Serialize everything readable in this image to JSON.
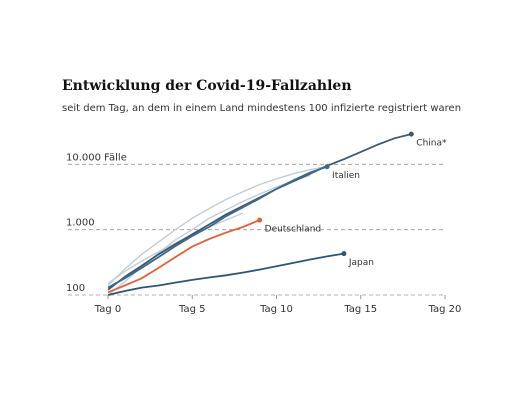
{
  "chart_data": {
    "type": "line",
    "title": "Entwicklung der Covid-19-Fallzahlen",
    "subtitle": "seit dem Tag, an dem in einem Land mindestens 100 infizierte registriert waren",
    "x": [
      0,
      1,
      2,
      3,
      4,
      5,
      6,
      7,
      8,
      9,
      10,
      11,
      12,
      13,
      14,
      15,
      16,
      17,
      18
    ],
    "xlim": [
      0,
      20
    ],
    "xticks": [
      {
        "value": 0,
        "label": "Tag 0"
      },
      {
        "value": 5,
        "label": "Tag 5"
      },
      {
        "value": 10,
        "label": "Tag 10"
      },
      {
        "value": 15,
        "label": "Tag 15"
      },
      {
        "value": 20,
        "label": "Tag 20"
      }
    ],
    "ylim": [
      100,
      40000
    ],
    "yscale": "log",
    "yticks": [
      100,
      {
        "value": 1000,
        "label": "1.000"
      },
      {
        "value": 10000,
        "label": "10.000 Fälle"
      }
    ],
    "grid": true,
    "series": [
      {
        "color": "#c3cdd4",
        "values": [
          140,
          250,
          420,
          650,
          1000,
          1500,
          2100,
          2900,
          3800,
          4900,
          6000,
          7200,
          8300,
          9300,
          null,
          null,
          null,
          null,
          null
        ]
      },
      {
        "color": "#c3cdd4",
        "values": [
          150,
          230,
          330,
          460,
          620,
          820,
          1100,
          1400,
          1800,
          null,
          null,
          null,
          null,
          null,
          null,
          null,
          null,
          null,
          null
        ]
      },
      {
        "color": "#c3cdd4",
        "values": [
          100,
          160,
          270,
          440,
          700,
          1000,
          1500,
          2000,
          2700,
          3500,
          4500,
          5600,
          6800,
          null,
          null,
          null,
          null,
          null,
          null
        ]
      },
      {
        "name": "China*",
        "color": "#3d5a73",
        "values": [
          120,
          190,
          280,
          420,
          600,
          850,
          1200,
          1700,
          2300,
          3100,
          4200,
          5500,
          7200,
          9500,
          12000,
          15500,
          20000,
          25000,
          29000
        ]
      },
      {
        "name": "Italien",
        "color": "#3d6a8a",
        "values": [
          130,
          180,
          260,
          380,
          560,
          800,
          1100,
          1600,
          2200,
          3000,
          4200,
          5700,
          7500,
          9200,
          null,
          null,
          null,
          null,
          null
        ]
      },
      {
        "name": "Deutschland",
        "color": "#e0623a",
        "values": [
          110,
          140,
          180,
          260,
          380,
          550,
          720,
          900,
          1100,
          1400,
          null,
          null,
          null,
          null,
          null,
          null,
          null,
          null,
          null
        ]
      },
      {
        "name": "Japan",
        "color": "#2f5670",
        "values": [
          100,
          115,
          130,
          140,
          155,
          170,
          185,
          200,
          220,
          245,
          275,
          310,
          350,
          390,
          430,
          null,
          null,
          null,
          null
        ]
      }
    ]
  }
}
